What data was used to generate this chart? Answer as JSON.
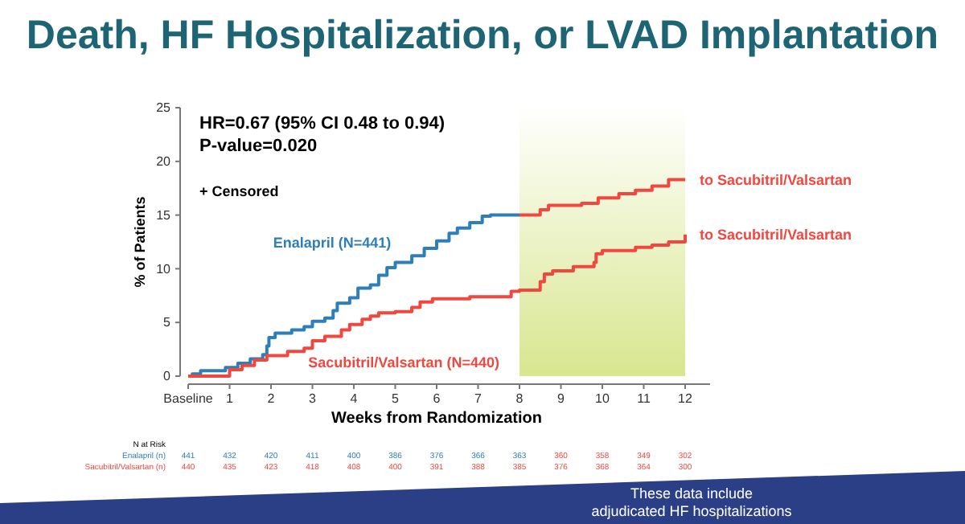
{
  "chart_data": {
    "type": "step",
    "title": "Death, HF Hospitalization, or LVAD Implantation",
    "xlabel": "Weeks from Randomization",
    "ylabel": "% of Patients",
    "xlim": [
      0,
      12.6
    ],
    "xticks": [
      {
        "value": 0,
        "label": "Baseline"
      },
      1,
      2,
      3,
      4,
      5,
      6,
      7,
      8,
      9,
      10,
      11,
      12
    ],
    "ylim": [
      0,
      25
    ],
    "yticks": [
      0,
      5,
      10,
      15,
      20,
      25
    ],
    "grid": false,
    "series": [
      {
        "name": "Enalapril (N=441)",
        "color": "#2e7fb8",
        "x": [
          0,
          0.1,
          0.3,
          0.9,
          1.2,
          1.5,
          1.8,
          1.9,
          1.95,
          2.1,
          2.5,
          2.8,
          3.0,
          3.3,
          3.5,
          3.6,
          3.9,
          4.1,
          4.4,
          4.6,
          4.8,
          5.0,
          5.4,
          5.7,
          6.0,
          6.3,
          6.5,
          6.8,
          7.1,
          7.3,
          8
        ],
        "values": [
          0,
          0.2,
          0.5,
          0.8,
          1.2,
          1.6,
          2.0,
          2.8,
          3.6,
          4.0,
          4.3,
          4.6,
          5.1,
          5.4,
          6.1,
          6.8,
          7.3,
          8.2,
          8.5,
          9.4,
          10.1,
          10.6,
          11.2,
          11.9,
          12.6,
          13.3,
          13.8,
          14.3,
          14.9,
          15.0,
          15.0
        ]
      },
      {
        "color": "#f2473f",
        "x": [
          8,
          8.5,
          8.7,
          9.5,
          9.9,
          10.4,
          10.8,
          11.2,
          11.6,
          12
        ],
        "values": [
          15.0,
          15.5,
          15.9,
          16.1,
          16.6,
          17.0,
          17.3,
          17.7,
          18.3,
          18.3
        ]
      },
      {
        "name": "Sacubitril/Valsartan (N=440)",
        "color": "#f2473f",
        "x": [
          0,
          1.0,
          1.3,
          1.6,
          1.9,
          2.4,
          2.8,
          3.0,
          3.3,
          3.7,
          3.9,
          4.2,
          4.4,
          4.6,
          5.0,
          5.4,
          5.6,
          5.9,
          6.8,
          7.8,
          8.0,
          8.5,
          8.6,
          8.8,
          9.3,
          9.8,
          9.85,
          10.0,
          10.8,
          11.2,
          11.6,
          12
        ],
        "values": [
          0,
          0.6,
          1.0,
          1.5,
          1.9,
          2.3,
          2.6,
          3.3,
          3.7,
          4.3,
          4.8,
          5.3,
          5.6,
          5.9,
          6.0,
          6.4,
          6.9,
          7.2,
          7.4,
          7.9,
          8.0,
          8.8,
          9.5,
          9.8,
          10.2,
          10.6,
          11.4,
          11.7,
          12.0,
          12.2,
          12.5,
          13.2
        ]
      }
    ],
    "bands": [
      {
        "axis": "x",
        "from": 8,
        "to": 12,
        "color": "#d8e68f"
      }
    ],
    "annotations": [
      "HR=0.67 (95% CI 0.48 to 0.94)",
      "P-value=0.020",
      "+ Censored",
      {
        "text": "to Sacubitril/Valsartan",
        "x": 12,
        "y": 18.3
      },
      {
        "text": "to Sacubitril/Valsartan",
        "x": 12,
        "y": 13.2
      },
      "N at Risk",
      "Enalapril (n)",
      "441 432 420 411 400 386 376 366 363 360 358 349 302",
      "Sacubitril/Valsartan (n)",
      "440 435 423 418 408 400 391 388 385 376 368 364 300",
      "These data include adjudicated HF hospitalizations"
    ]
  }
}
